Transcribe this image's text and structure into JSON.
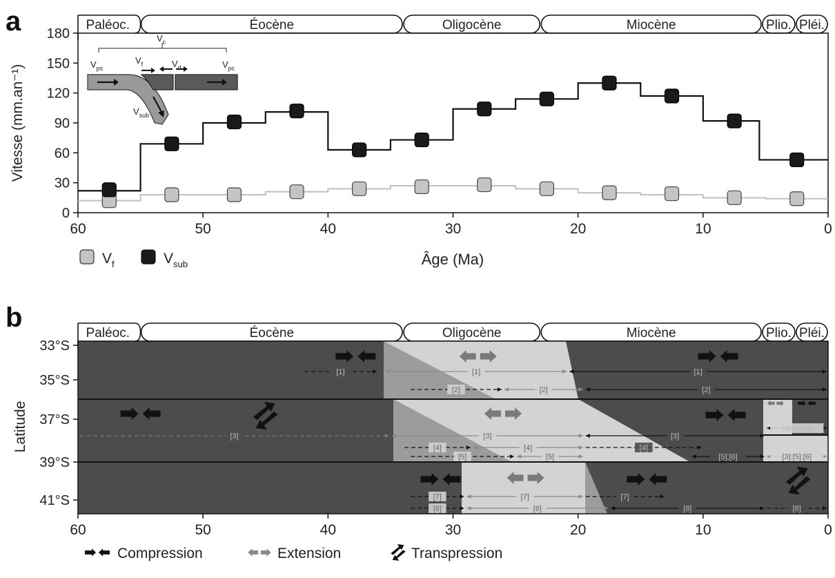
{
  "panels": {
    "a_letter": "a",
    "b_letter": "b"
  },
  "epochs": [
    {
      "label": "Paléoc.",
      "start": 65,
      "end": 55
    },
    {
      "label": "Éocène",
      "start": 55,
      "end": 34
    },
    {
      "label": "Oligocène",
      "start": 34,
      "end": 23
    },
    {
      "label": "Miocène",
      "start": 23,
      "end": 5.3
    },
    {
      "label": "Plio.",
      "start": 5.3,
      "end": 2.6
    },
    {
      "label": "Pléi.",
      "start": 2.6,
      "end": 0
    }
  ],
  "chart_data": [
    {
      "type": "line",
      "panel": "a",
      "xlabel": "Âge (Ma)",
      "ylabel": "Vitesse (mm.an⁻¹)",
      "xlim": [
        60,
        0
      ],
      "ylim": [
        0,
        180
      ],
      "x_ticks": [
        60,
        50,
        40,
        30,
        20,
        10,
        0
      ],
      "y_ticks": [
        0,
        30,
        60,
        90,
        120,
        150,
        180
      ],
      "step": true,
      "series": [
        {
          "name": "Vsub",
          "color": "#1a1a1a",
          "steps": [
            [
              60,
              55,
              22
            ],
            [
              55,
              50,
              69
            ],
            [
              50,
              45,
              90
            ],
            [
              45,
              40,
              101
            ],
            [
              40,
              35,
              63
            ],
            [
              35,
              30,
              73
            ],
            [
              30,
              25,
              104
            ],
            [
              25,
              20,
              114
            ],
            [
              20,
              15,
              130
            ],
            [
              15,
              10,
              117
            ],
            [
              10,
              5.5,
              92
            ],
            [
              5.5,
              0,
              53
            ]
          ],
          "points": [
            [
              57.5,
              23
            ],
            [
              52.5,
              69
            ],
            [
              47.5,
              91
            ],
            [
              42.5,
              102
            ],
            [
              37.5,
              63
            ],
            [
              32.5,
              73
            ],
            [
              27.5,
              104
            ],
            [
              22.5,
              114
            ],
            [
              17.5,
              130
            ],
            [
              12.5,
              117
            ],
            [
              7.5,
              92
            ],
            [
              2.5,
              53
            ]
          ]
        },
        {
          "name": "Vf",
          "color": "#c4c4c4",
          "steps": [
            [
              60,
              55,
              12
            ],
            [
              55,
              50,
              18
            ],
            [
              50,
              45,
              18
            ],
            [
              45,
              40,
              21
            ],
            [
              40,
              35,
              24
            ],
            [
              35,
              30,
              27
            ],
            [
              30,
              25,
              27
            ],
            [
              25,
              20,
              24
            ],
            [
              20,
              15,
              20
            ],
            [
              15,
              10,
              18
            ],
            [
              10,
              5,
              15
            ],
            [
              5,
              0,
              14
            ]
          ],
          "points": [
            [
              57.5,
              12
            ],
            [
              52.5,
              18
            ],
            [
              47.5,
              18
            ],
            [
              42.5,
              21
            ],
            [
              37.5,
              24
            ],
            [
              32.5,
              26
            ],
            [
              27.5,
              28
            ],
            [
              22.5,
              24
            ],
            [
              17.5,
              20
            ],
            [
              12.5,
              19
            ],
            [
              7.5,
              15
            ],
            [
              2.5,
              14
            ]
          ]
        }
      ],
      "legend": [
        {
          "symbol": "V",
          "sub": "f",
          "color": "#c4c4c4"
        },
        {
          "symbol": "V",
          "sub": "sub",
          "color": "#1a1a1a"
        }
      ],
      "inset": {
        "vc": "V",
        "vc_sub": "c",
        "vps": "V",
        "vps_sub": "ps",
        "vf": "V",
        "vf_sub": "f",
        "vd": "V",
        "vd_sub": "d",
        "vpc": "V",
        "vpc_sub": "pc",
        "vsub": "V",
        "vsub_sub": "sub"
      }
    },
    {
      "type": "area",
      "panel": "b",
      "ylabel": "Latitude",
      "xlim": [
        60,
        0
      ],
      "x_ticks": [
        60,
        50,
        40,
        30,
        20,
        10,
        0
      ],
      "y_ticks": [
        "33°S",
        "35°S",
        "37°S",
        "39°S",
        "41°S"
      ],
      "legend": [
        {
          "label": "Compression"
        },
        {
          "label": "Extension"
        },
        {
          "label": "Transpression"
        }
      ],
      "ranges": [
        {
          "label": "[1]",
          "from": 42,
          "to": 36
        },
        {
          "label": "[1]",
          "from": 35.5,
          "to": 20.8
        },
        {
          "label": "[1]",
          "from": 20.8,
          "to": 0
        },
        {
          "label": "[2]",
          "from": 33.5,
          "to": 26
        },
        {
          "label": "[2]",
          "from": 26,
          "to": 19.5
        },
        {
          "label": "[2]",
          "from": 19.5,
          "to": 0
        },
        {
          "label": "[3]",
          "from": 60,
          "to": 35
        },
        {
          "label": "[3]",
          "from": 35,
          "to": 19.5
        },
        {
          "label": "[3]",
          "from": 19.5,
          "to": 5
        },
        {
          "label": "[3];[5];[6]",
          "from": 5,
          "to": 0
        },
        {
          "label": "[4]",
          "from": 34,
          "to": 28.5
        },
        {
          "label": "[4]",
          "from": 28.5,
          "to": 19.5
        },
        {
          "label": "[4]",
          "from": 19.5,
          "to": 10
        },
        {
          "label": "[5]",
          "from": 33.5,
          "to": 25
        },
        {
          "label": "[5]",
          "from": 25,
          "to": 19.5
        },
        {
          "label": "[5];[6]",
          "from": 11,
          "to": 5
        },
        {
          "label": "[3];[5];[6]",
          "from": 5,
          "to": 0
        },
        {
          "label": "[7]",
          "from": 33.5,
          "to": 29
        },
        {
          "label": "[7]",
          "from": 29,
          "to": 19.5
        },
        {
          "label": "[7]",
          "from": 19.5,
          "to": 13
        },
        {
          "label": "[8]",
          "from": 33.5,
          "to": 29
        },
        {
          "label": "[8]",
          "from": 29,
          "to": 17.5
        },
        {
          "label": "[8]",
          "from": 17.5,
          "to": 5
        },
        {
          "label": "[8]",
          "from": 5,
          "to": 0
        }
      ]
    }
  ]
}
